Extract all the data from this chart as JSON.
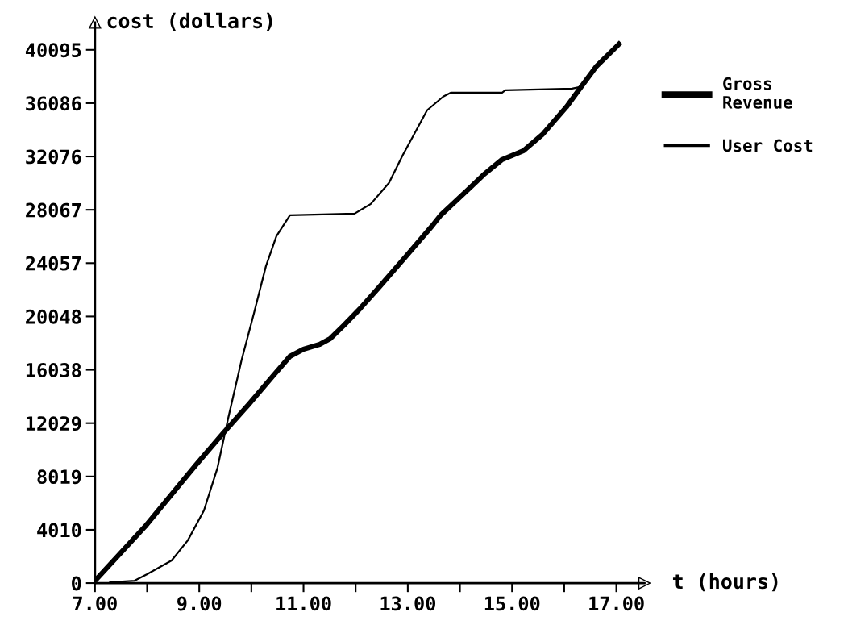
{
  "chart_data": {
    "type": "line",
    "xlabel": "t (hours)",
    "ylabel": "cost (dollars)",
    "xlim": [
      7,
      17.54
    ],
    "ylim": [
      0,
      42150
    ],
    "xticks": [
      {
        "value": 7,
        "label": "7.00"
      },
      {
        "value": 8,
        "label": null
      },
      {
        "value": 9,
        "label": "9.00"
      },
      {
        "value": 10,
        "label": null
      },
      {
        "value": 11,
        "label": "11.00"
      },
      {
        "value": 12,
        "label": null
      },
      {
        "value": 13,
        "label": "13.00"
      },
      {
        "value": 14,
        "label": null
      },
      {
        "value": 15,
        "label": "15.00"
      },
      {
        "value": 16,
        "label": null
      },
      {
        "value": 17,
        "label": "17.00"
      }
    ],
    "yticks": [
      0,
      4010,
      8019,
      12029,
      16038,
      20048,
      24057,
      28067,
      32076,
      36086,
      40095
    ],
    "grid": false,
    "legend": "right",
    "line_style": "solid",
    "series": [
      {
        "name": "Gross\nRevenue",
        "color": "#000000",
        "x": [
          7.03,
          7.96,
          8.47,
          8.93,
          9.46,
          9.94,
          10.43,
          10.74,
          11.0,
          11.31,
          11.51,
          11.78,
          12.08,
          12.44,
          12.95,
          13.47,
          13.63,
          14.19,
          14.45,
          14.81,
          15.22,
          15.58,
          16.04,
          16.3,
          16.61,
          17.05
        ],
        "values": [
          300,
          4250,
          6670,
          8860,
          11280,
          13400,
          15650,
          17050,
          17590,
          17950,
          18380,
          19410,
          20620,
          22200,
          24500,
          26870,
          27660,
          29720,
          30690,
          31850,
          32510,
          33720,
          35790,
          37180,
          38820,
          40520
        ]
      },
      {
        "name": "User Cost",
        "color": "#000000",
        "x": [
          7.29,
          7.76,
          8.0,
          8.47,
          8.78,
          9.09,
          9.35,
          9.55,
          9.81,
          10.05,
          10.28,
          10.48,
          10.74,
          11.98,
          12.29,
          12.64,
          12.9,
          13.37,
          13.68,
          13.83,
          14.81,
          14.87,
          16.15,
          16.3,
          16.61,
          17.05
        ],
        "values": [
          60,
          180,
          670,
          1700,
          3210,
          5460,
          8670,
          12310,
          16740,
          20300,
          23840,
          26080,
          27660,
          27780,
          28510,
          30090,
          32150,
          35550,
          36580,
          36880,
          36880,
          37060,
          37180,
          37300,
          38820,
          40640
        ]
      }
    ]
  }
}
